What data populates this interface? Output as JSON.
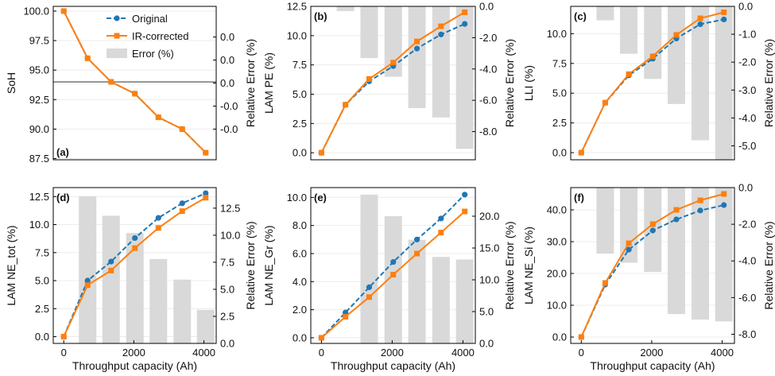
{
  "colors": {
    "original": "#1f77b4",
    "ir_corrected": "#ff7f0e",
    "error_bar": "#d9d9d9",
    "reference_line": "#7f7f7f"
  },
  "legend": {
    "original": "Original",
    "ir_corrected": "IR-corrected",
    "error": "Error (%)"
  },
  "chart_data": [
    {
      "panel": "(a)",
      "type": "line",
      "xlabel": "",
      "ylabel": "SoH",
      "y2label": "Relative Error (%)",
      "x": [
        0,
        680,
        1350,
        2030,
        2700,
        3380,
        4050
      ],
      "x_ticks": [],
      "x_tick_labels": [],
      "xlim": [
        -300,
        4350
      ],
      "ylim": [
        87.4,
        100.4
      ],
      "y_ticks": [
        87.5,
        90.0,
        92.5,
        95.0,
        97.5,
        100.0
      ],
      "y_tick_labels": [
        "87.5",
        "90.0",
        "92.5",
        "95.0",
        "97.5",
        "100.0"
      ],
      "y2lim": [
        -1.0,
        1.0
      ],
      "y2_ticks": [
        -0.6,
        -0.3,
        0.0,
        0.3,
        0.6
      ],
      "y2_tick_labels": [
        "-0.0",
        "-0.0",
        "0.0",
        "0.0",
        "0.0"
      ],
      "hline": 94.0,
      "series": [
        {
          "name": "Original",
          "values": [
            100.0,
            96.0,
            94.0,
            93.0,
            91.0,
            90.0,
            88.0
          ]
        },
        {
          "name": "IR-corrected",
          "values": [
            100.0,
            96.0,
            94.0,
            93.0,
            91.0,
            90.0,
            88.0
          ]
        }
      ],
      "error_bars": []
    },
    {
      "panel": "(b)",
      "type": "line",
      "xlabel": "",
      "ylabel": "LAM PE (%)",
      "y2label": "Relative Error (%)",
      "x": [
        0,
        680,
        1350,
        2030,
        2700,
        3380,
        4050
      ],
      "x_ticks": [],
      "x_tick_labels": [],
      "xlim": [
        -300,
        4350
      ],
      "ylim": [
        -0.6,
        12.5
      ],
      "y_ticks": [
        0.0,
        2.5,
        5.0,
        7.5,
        10.0,
        12.5
      ],
      "y_tick_labels": [
        "0.0",
        "2.5",
        "5.0",
        "7.5",
        "10.0",
        "12.5"
      ],
      "y2lim": [
        -9.8,
        0.0
      ],
      "y2_ticks": [
        -8.0,
        -6.0,
        -4.0,
        -2.0,
        0.0
      ],
      "y2_tick_labels": [
        "-8.0",
        "-6.0",
        "-4.0",
        "-2.0",
        "0.0"
      ],
      "series": [
        {
          "name": "Original",
          "values": [
            0.0,
            4.1,
            6.1,
            7.4,
            8.9,
            10.1,
            11.0
          ]
        },
        {
          "name": "IR-corrected",
          "values": [
            0.0,
            4.1,
            6.3,
            7.7,
            9.5,
            10.8,
            12.0
          ]
        }
      ],
      "error_bars": [
        {
          "x": 680,
          "value": -0.3
        },
        {
          "x": 1350,
          "value": -3.3
        },
        {
          "x": 2030,
          "value": -4.5
        },
        {
          "x": 2700,
          "value": -6.5
        },
        {
          "x": 3380,
          "value": -7.1
        },
        {
          "x": 4050,
          "value": -9.1
        }
      ]
    },
    {
      "panel": "(c)",
      "type": "line",
      "xlabel": "",
      "ylabel": "LLI (%)",
      "y2label": "Relative Error (%)",
      "x": [
        0,
        680,
        1350,
        2030,
        2700,
        3380,
        4050
      ],
      "x_ticks": [],
      "x_tick_labels": [],
      "xlim": [
        -300,
        4350
      ],
      "ylim": [
        -0.6,
        12.3
      ],
      "y_ticks": [
        0.0,
        2.5,
        5.0,
        7.5,
        10.0
      ],
      "y_tick_labels": [
        "0.0",
        "2.5",
        "5.0",
        "7.5",
        "10.0"
      ],
      "y2lim": [
        -5.5,
        0.0
      ],
      "y2_ticks": [
        -5.0,
        -4.0,
        -3.0,
        -2.0,
        -1.0,
        0.0
      ],
      "y2_tick_labels": [
        "-5.0",
        "-4.0",
        "-3.0",
        "-2.0",
        "-1.0",
        "0.0"
      ],
      "series": [
        {
          "name": "Original",
          "values": [
            0.0,
            4.2,
            6.5,
            7.9,
            9.6,
            10.8,
            11.2
          ]
        },
        {
          "name": "IR-corrected",
          "values": [
            0.0,
            4.2,
            6.6,
            8.1,
            9.9,
            11.3,
            11.8
          ]
        }
      ],
      "error_bars": [
        {
          "x": 680,
          "value": -0.5
        },
        {
          "x": 1350,
          "value": -1.7
        },
        {
          "x": 2030,
          "value": -2.6
        },
        {
          "x": 2700,
          "value": -3.5
        },
        {
          "x": 3380,
          "value": -4.8
        },
        {
          "x": 4050,
          "value": -5.5
        }
      ]
    },
    {
      "panel": "(d)",
      "type": "line",
      "xlabel": "Throughput capacity (Ah)",
      "ylabel": "LAM NE_tot (%)",
      "y2label": "Relative Error (%)",
      "x": [
        0,
        680,
        1350,
        2030,
        2700,
        3380,
        4050
      ],
      "x_ticks": [
        0,
        2000,
        4000
      ],
      "x_tick_labels": [
        "0",
        "2000",
        "4000"
      ],
      "xlim": [
        -300,
        4350
      ],
      "ylim": [
        -0.6,
        13.3
      ],
      "y_ticks": [
        0.0,
        2.5,
        5.0,
        7.5,
        10.0,
        12.5
      ],
      "y_tick_labels": [
        "0.0",
        "2.5",
        "5.0",
        "7.5",
        "10.0",
        "12.5"
      ],
      "y2lim": [
        0.0,
        14.4
      ],
      "y2_ticks": [
        0.0,
        2.5,
        5.0,
        7.5,
        10.0,
        12.5
      ],
      "y2_tick_labels": [
        "0.0",
        "2.5",
        "5.0",
        "7.5",
        "10.0",
        "12.5"
      ],
      "series": [
        {
          "name": "Original",
          "values": [
            0.0,
            5.0,
            6.7,
            8.8,
            10.6,
            11.9,
            12.8
          ]
        },
        {
          "name": "IR-corrected",
          "values": [
            0.0,
            4.6,
            5.9,
            7.9,
            9.7,
            11.2,
            12.4
          ]
        }
      ],
      "error_bars": [
        {
          "x": 680,
          "value": 13.6
        },
        {
          "x": 1350,
          "value": 11.8
        },
        {
          "x": 2030,
          "value": 10.2
        },
        {
          "x": 2700,
          "value": 7.8
        },
        {
          "x": 3380,
          "value": 5.9
        },
        {
          "x": 4050,
          "value": 3.1
        }
      ]
    },
    {
      "panel": "(e)",
      "type": "line",
      "xlabel": "Throughput capacity (Ah)",
      "ylabel": "LAM NE_Gr (%)",
      "y2label": "Relative Error (%)",
      "x": [
        0,
        680,
        1350,
        2030,
        2700,
        3380,
        4050
      ],
      "x_ticks": [
        0,
        2000,
        4000
      ],
      "x_tick_labels": [
        "0",
        "2000",
        "4000"
      ],
      "xlim": [
        -300,
        4350
      ],
      "ylim": [
        -0.4,
        10.7
      ],
      "y_ticks": [
        0.0,
        2.0,
        4.0,
        6.0,
        8.0,
        10.0
      ],
      "y_tick_labels": [
        "0.0",
        "2.0",
        "4.0",
        "6.0",
        "8.0",
        "10.0"
      ],
      "y2lim": [
        0.0,
        24.5
      ],
      "y2_ticks": [
        0.0,
        5.0,
        10.0,
        15.0,
        20.0
      ],
      "y2_tick_labels": [
        "0.0",
        "5.0",
        "10.0",
        "15.0",
        "20.0"
      ],
      "series": [
        {
          "name": "Original",
          "values": [
            0.0,
            1.8,
            3.6,
            5.4,
            7.0,
            8.5,
            10.2
          ]
        },
        {
          "name": "IR-corrected",
          "values": [
            0.0,
            1.5,
            2.9,
            4.5,
            6.0,
            7.5,
            9.0
          ]
        }
      ],
      "error_bars": [
        {
          "x": 1350,
          "value": 23.4
        },
        {
          "x": 2030,
          "value": 20.0
        },
        {
          "x": 2700,
          "value": 16.3
        },
        {
          "x": 3380,
          "value": 13.6
        },
        {
          "x": 4050,
          "value": 13.2
        }
      ]
    },
    {
      "panel": "(f)",
      "type": "line",
      "xlabel": "Throughput capacity (Ah)",
      "ylabel": "LAM NE_Si (%)",
      "y2label": "Relative Error (%)",
      "x": [
        0,
        680,
        1350,
        2030,
        2700,
        3380,
        4050
      ],
      "x_ticks": [
        0,
        2000,
        4000
      ],
      "x_tick_labels": [
        "0",
        "2000",
        "4000"
      ],
      "xlim": [
        -300,
        4350
      ],
      "ylim": [
        -2.0,
        47.0
      ],
      "y_ticks": [
        0.0,
        10.0,
        20.0,
        30.0,
        40.0
      ],
      "y_tick_labels": [
        "0.0",
        "10.0",
        "20.0",
        "30.0",
        "40.0"
      ],
      "y2lim": [
        -8.5,
        0.0
      ],
      "y2_ticks": [
        -8.0,
        -6.0,
        -4.0,
        -2.0,
        0.0
      ],
      "y2_tick_labels": [
        "-8.0",
        "-6.0",
        "-4.0",
        "-2.0",
        "0.0"
      ],
      "series": [
        {
          "name": "Original",
          "values": [
            0.0,
            16.5,
            27.5,
            33.5,
            37.0,
            39.8,
            41.5
          ]
        },
        {
          "name": "IR-corrected",
          "values": [
            0.0,
            17.0,
            29.5,
            35.5,
            40.0,
            43.0,
            45.0
          ]
        }
      ],
      "error_bars": [
        {
          "x": 680,
          "value": -3.6
        },
        {
          "x": 1350,
          "value": -4.1
        },
        {
          "x": 2030,
          "value": -4.6
        },
        {
          "x": 2700,
          "value": -6.9
        },
        {
          "x": 3380,
          "value": -7.2
        },
        {
          "x": 4050,
          "value": -7.3
        }
      ]
    }
  ]
}
